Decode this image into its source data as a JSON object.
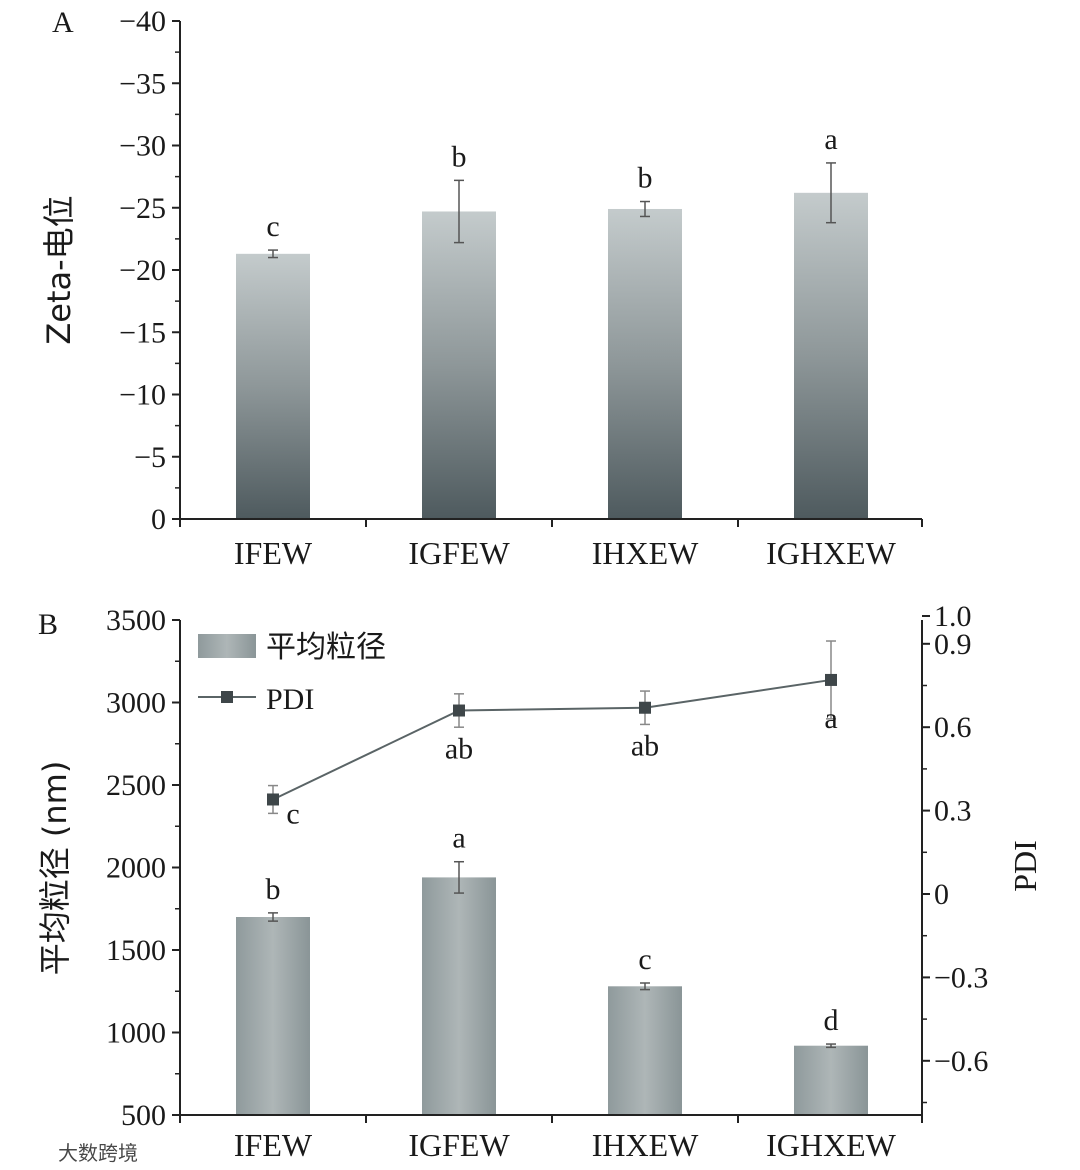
{
  "chart_data": [
    {
      "panel": "A",
      "type": "bar",
      "panel_label": "A",
      "ylabel": "Zeta-电位",
      "categories": [
        "IFEW",
        "IGFEW",
        "IHXEW",
        "IGHXEW"
      ],
      "values": [
        -21.3,
        -24.7,
        -24.9,
        -26.2
      ],
      "errors": [
        0.3,
        2.5,
        0.6,
        2.4
      ],
      "letters": [
        "c",
        "b",
        "b",
        "a"
      ],
      "ylim": [
        0,
        -40
      ],
      "yticks": [
        "0",
        "−5",
        "−10",
        "−15",
        "−20",
        "−25",
        "−30",
        "−35",
        "−40"
      ]
    },
    {
      "panel": "B",
      "type": "bar+line",
      "panel_label": "B",
      "ylabel_left": "平均粒径 (nm)",
      "ylabel_right": "PDI",
      "categories": [
        "IFEW",
        "IGFEW",
        "IHXEW",
        "IGHXEW"
      ],
      "legend": {
        "bar_label": "平均粒径",
        "line_label": "PDI"
      },
      "series": [
        {
          "name": "平均粒径",
          "type": "bar",
          "axis": "left",
          "values": [
            1700,
            1940,
            1280,
            920
          ],
          "errors": [
            25,
            95,
            20,
            10
          ],
          "letters": [
            "b",
            "a",
            "c",
            "d"
          ]
        },
        {
          "name": "PDI",
          "type": "line",
          "axis": "right",
          "values": [
            0.34,
            0.66,
            0.67,
            0.77
          ],
          "errors": [
            0.05,
            0.06,
            0.06,
            0.14
          ],
          "letters": [
            "c",
            "ab",
            "ab",
            "a"
          ]
        }
      ],
      "ylim_left": [
        500,
        3500
      ],
      "yticks_left": [
        "500",
        "1000",
        "1500",
        "2000",
        "2500",
        "3000",
        "3500"
      ],
      "ylim_right": [
        -0.8,
        1.0
      ],
      "yticks_right": [
        "−0.6",
        "−0.3",
        "0",
        "0.3",
        "0.6",
        "0.9",
        "1.0"
      ]
    }
  ],
  "watermark": "大数跨境"
}
